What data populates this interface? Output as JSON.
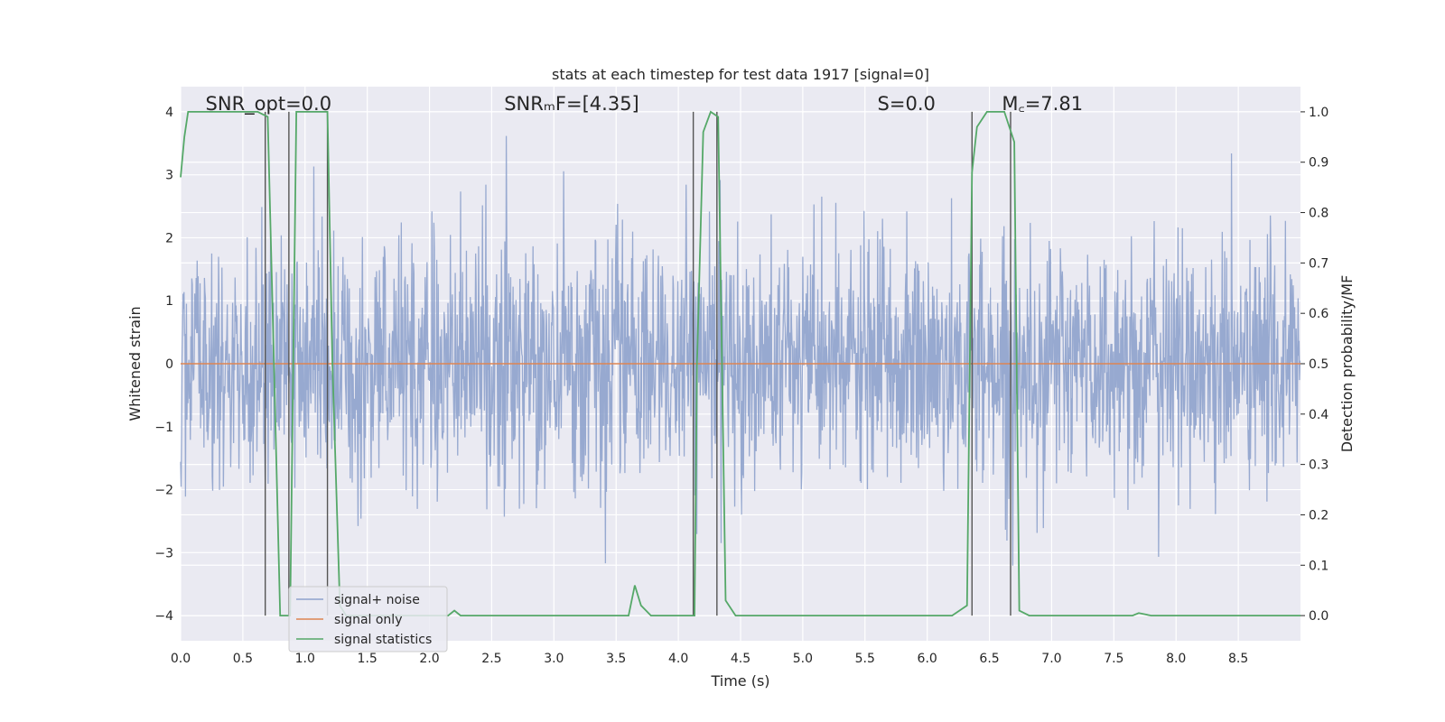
{
  "chart_data": {
    "type": "line",
    "title": "stats at each timestep for test data 1917 [signal=0]",
    "xlabel": "Time (s)",
    "ylabel": "Whitened strain",
    "y2label": "Detection probability/MF",
    "xlim": [
      0.0,
      9.0
    ],
    "ylim": [
      -4.4,
      4.4
    ],
    "y2lim": [
      -0.05,
      1.05
    ],
    "xticks": [
      0.0,
      0.5,
      1.0,
      1.5,
      2.0,
      2.5,
      3.0,
      3.5,
      4.0,
      4.5,
      5.0,
      5.5,
      6.0,
      6.5,
      7.0,
      7.5,
      8.0,
      8.5
    ],
    "xtick_labels": [
      "0.0",
      "0.5",
      "1.0",
      "1.5",
      "2.0",
      "2.5",
      "3.0",
      "3.5",
      "4.0",
      "4.5",
      "5.0",
      "5.5",
      "6.0",
      "6.5",
      "7.0",
      "7.5",
      "8.0",
      "8.5"
    ],
    "yticks": [
      -4,
      -3,
      -2,
      -1,
      0,
      1,
      2,
      3,
      4
    ],
    "ytick_labels": [
      "−4",
      "−3",
      "−2",
      "−1",
      "0",
      "1",
      "2",
      "3",
      "4"
    ],
    "y2ticks": [
      0.0,
      0.1,
      0.2,
      0.3,
      0.4,
      0.5,
      0.6,
      0.7,
      0.8,
      0.9,
      1.0
    ],
    "y2tick_labels": [
      "0.0",
      "0.1",
      "0.2",
      "0.3",
      "0.4",
      "0.5",
      "0.6",
      "0.7",
      "0.8",
      "0.9",
      "1.0"
    ],
    "grid": true,
    "legend_position": "lower-left",
    "annotations": [
      {
        "text": "SNR_opt=0.0",
        "x": 0.2,
        "y": 4.1
      },
      {
        "text": "SNRₘF=[4.35]",
        "x": 2.6,
        "y": 4.1
      },
      {
        "text": "S=0.0",
        "x": 5.6,
        "y": 4.1
      },
      {
        "text": "M꜀=7.81",
        "x": 6.6,
        "y": 4.1
      }
    ],
    "series": [
      {
        "name": "signal+ noise",
        "color": "#8ea2cc",
        "kind": "noise",
        "sample_rate": 256,
        "std": 0.95,
        "x_range": [
          0.0,
          9.0
        ]
      },
      {
        "name": "signal only",
        "color": "#dd8452",
        "kind": "line",
        "x": [
          0.0,
          9.0
        ],
        "y": [
          0.0,
          0.0
        ]
      },
      {
        "name": "signal statistics",
        "color": "#55a868",
        "kind": "line",
        "axis": "right",
        "x": [
          0.0,
          0.03,
          0.06,
          0.1,
          0.15,
          0.5,
          0.62,
          0.7,
          0.75,
          0.8,
          0.88,
          0.93,
          0.96,
          1.0,
          1.18,
          1.22,
          1.28,
          1.33,
          1.4,
          2.15,
          2.2,
          2.25,
          3.55,
          3.6,
          3.65,
          3.7,
          3.78,
          4.13,
          4.15,
          4.2,
          4.26,
          4.32,
          4.38,
          4.46,
          5.0,
          6.2,
          6.32,
          6.36,
          6.4,
          6.48,
          6.62,
          6.7,
          6.74,
          6.82,
          7.5,
          7.65,
          7.7,
          7.8,
          9.0
        ],
        "y": [
          0.87,
          0.95,
          1.0,
          1.0,
          1.0,
          1.0,
          1.0,
          0.99,
          0.5,
          0.0,
          0.0,
          1.0,
          1.0,
          1.0,
          1.0,
          0.5,
          0.02,
          0.0,
          0.0,
          0.0,
          0.01,
          0.0,
          0.0,
          0.0,
          0.06,
          0.02,
          0.0,
          0.0,
          0.5,
          0.96,
          1.0,
          0.99,
          0.03,
          0.0,
          0.0,
          0.0,
          0.02,
          0.88,
          0.97,
          1.0,
          1.0,
          0.94,
          0.01,
          0.0,
          0.0,
          0.0,
          0.005,
          0.0,
          0.0
        ]
      }
    ],
    "vertical_lines": {
      "color": "#555555",
      "y_range": [
        0.0,
        1.0
      ],
      "x": [
        0.68,
        0.87,
        1.18,
        4.12,
        4.31,
        6.36,
        6.67
      ]
    }
  }
}
